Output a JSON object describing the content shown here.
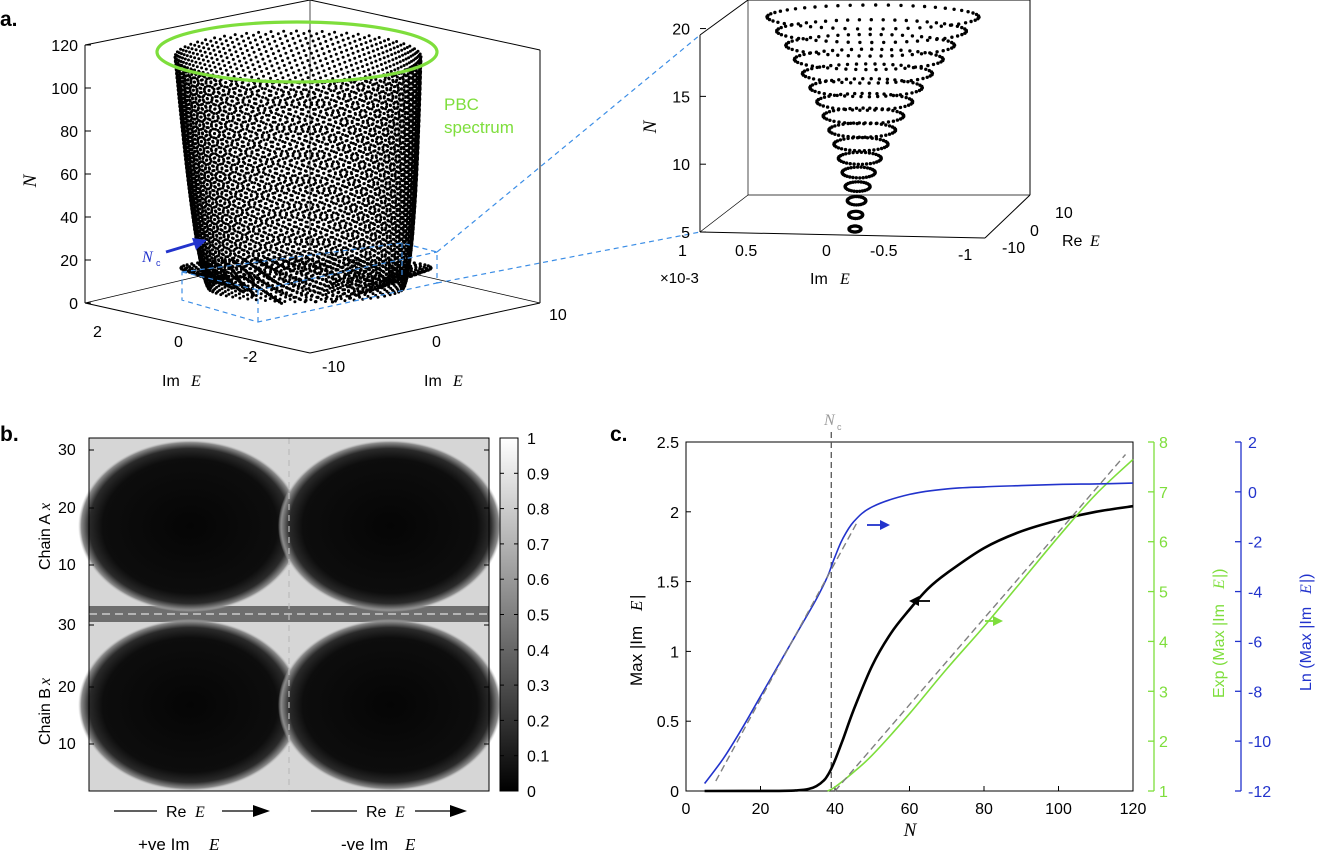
{
  "panel_labels": {
    "a": "a.",
    "b": "b.",
    "c": "c."
  },
  "colors": {
    "green": "#7ede3c",
    "blue": "#2233cc",
    "dashed_blue": "#3c8ee6",
    "gray": "#808080",
    "black": "#000000"
  },
  "chart_data": [
    {
      "id": "a_main",
      "type": "scatter",
      "title": "",
      "zlabel": "N",
      "xlabel_prefix": "Im",
      "xlabel_var": "E",
      "ylabel_prefix": "Im",
      "ylabel_var": "E",
      "z_ticks": [
        "0",
        "20",
        "40",
        "60",
        "80",
        "100",
        "120"
      ],
      "zlim": [
        0,
        120
      ],
      "x_ticks": [
        "2",
        "0",
        "-2"
      ],
      "y_ticks": [
        "-10",
        "0",
        "10"
      ],
      "annotation_pbc_line1": "PBC",
      "annotation_pbc_line2": "spectrum",
      "nc_label": "N",
      "nc_sub": "c",
      "nc_value": 20,
      "description_series": "OBC eigenvalues for N = 1..120 stacked along N; PBC spectrum ring at top"
    },
    {
      "id": "a_inset",
      "type": "scatter",
      "zlabel": "N",
      "z_ticks": [
        "5",
        "10",
        "15",
        "20"
      ],
      "zlim": [
        5,
        21
      ],
      "x_ticks": [
        "1",
        "0.5",
        "0",
        "-0.5",
        "-1"
      ],
      "x_multiplier": "×10-3",
      "xlabel_prefix": "Im",
      "xlabel_var": "E",
      "y_ticks": [
        "10",
        "0",
        "-10"
      ],
      "ylabel_prefix": "Re",
      "ylabel_var": "E"
    },
    {
      "id": "b_heatmap",
      "type": "heatmap",
      "colorbar_ticks": [
        "1",
        "0.9",
        "0.8",
        "0.7",
        "0.6",
        "0.5",
        "0.4",
        "0.3",
        "0.2",
        "0.1",
        "0"
      ],
      "clim": [
        0,
        1
      ],
      "chainA_label_prefix": "Chain A",
      "chainB_label_prefix": "Chain B",
      "chain_var": "x",
      "y_ticks_top": [
        "30",
        "20",
        "10"
      ],
      "y_ticks_bottom": [
        "30",
        "20",
        "10"
      ],
      "left_caption_prefix": "Re",
      "left_caption_var": "E",
      "right_caption_prefix": "Re",
      "right_caption_var": "E",
      "left_sub_prefix": "+ve Im",
      "right_sub_prefix": "-ve Im",
      "sub_var": "E"
    },
    {
      "id": "c_lines",
      "type": "line",
      "xlabel": "N",
      "xlim": [
        0,
        120
      ],
      "x_ticks": [
        0,
        20,
        40,
        60,
        80,
        100,
        120
      ],
      "ylabel_left_prefix": "Max |Im",
      "ylabel_left_var": "E",
      "ylim_left": [
        0,
        2.5
      ],
      "y_ticks_left": [
        "0",
        "0.5",
        "1",
        "1.5",
        "2",
        "2.5"
      ],
      "ylabel_green_prefix": "Exp (Max |Im",
      "ylabel_green_var": "E",
      "ylim_green": [
        1,
        8
      ],
      "y_ticks_green": [
        "1",
        "2",
        "3",
        "4",
        "5",
        "6",
        "7",
        "8"
      ],
      "ylabel_blue_prefix": "Ln (Max |Im",
      "ylabel_blue_var": "E",
      "ylim_blue": [
        -12,
        2
      ],
      "y_ticks_blue": [
        "-12",
        "-10",
        "-8",
        "-6",
        "-4",
        "-2",
        "0",
        "2"
      ],
      "nc_label": "N",
      "nc_sub": "c",
      "nc_value": 39,
      "series": [
        {
          "name": "Max |Im E|",
          "axis": "left",
          "color": "#000000",
          "x": [
            5,
            25,
            30,
            33,
            35,
            37,
            38,
            39,
            40,
            42,
            45,
            50,
            55,
            60,
            65,
            70,
            80,
            90,
            100,
            110,
            120
          ],
          "y": [
            0,
            0.001,
            0.005,
            0.015,
            0.035,
            0.075,
            0.11,
            0.16,
            0.22,
            0.36,
            0.58,
            0.9,
            1.13,
            1.3,
            1.45,
            1.56,
            1.74,
            1.86,
            1.94,
            2.0,
            2.04
          ]
        },
        {
          "name": "Exp (Max |Im E|)",
          "axis": "green",
          "color": "#7ede3c",
          "x": [
            38,
            40,
            45,
            50,
            60,
            70,
            80,
            90,
            100,
            110,
            120
          ],
          "y": [
            1.0,
            1.08,
            1.38,
            1.72,
            2.55,
            3.45,
            4.3,
            5.2,
            6.1,
            6.95,
            7.65
          ]
        },
        {
          "name": "Ln (Max |Im E|)",
          "axis": "blue",
          "color": "#2233cc",
          "x": [
            5,
            10,
            15,
            20,
            25,
            30,
            35,
            38,
            39,
            40,
            42,
            45,
            50,
            60,
            70,
            80,
            90,
            100,
            110,
            120
          ],
          "y": [
            -11.7,
            -10.7,
            -9.5,
            -8.2,
            -6.9,
            -5.6,
            -4.3,
            -3.4,
            -3.0,
            -2.6,
            -1.9,
            -1.2,
            -0.6,
            -0.1,
            0.12,
            0.2,
            0.25,
            0.3,
            0.32,
            0.35
          ]
        },
        {
          "name": "fit blue",
          "axis": "blue",
          "color": "#808080",
          "dashed": true,
          "x": [
            8,
            46
          ],
          "y": [
            -11.6,
            -1.2
          ]
        },
        {
          "name": "fit green",
          "axis": "green",
          "color": "#808080",
          "dashed": true,
          "x": [
            40,
            118
          ],
          "y": [
            1.0,
            7.75
          ]
        }
      ]
    }
  ]
}
